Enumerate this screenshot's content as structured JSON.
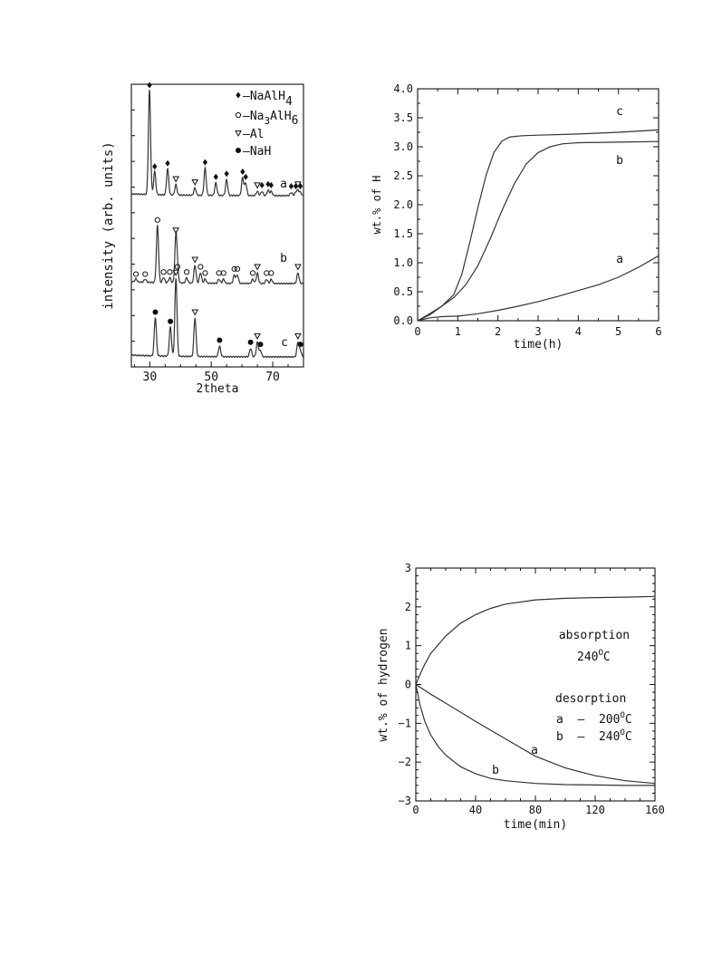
{
  "chart_data": [
    {
      "type": "line",
      "panel": "xrd",
      "xlabel": "2theta",
      "ylabel": "intensity (arb. units)",
      "xlim": [
        24,
        80
      ],
      "x_ticks": [
        "30",
        "50",
        "70"
      ],
      "x_tick_values": [
        30,
        50,
        70
      ],
      "legend": [
        {
          "marker": "diamond",
          "label": "NaAlH4",
          "text_prefix": "–NaAlH",
          "sub": "4"
        },
        {
          "marker": "circle-open",
          "label": "Na3AlH6",
          "text_prefix": "–Na",
          "sub1": "3",
          "mid": "AlH",
          "sub": "6"
        },
        {
          "marker": "triangle-open",
          "label": "Al",
          "text_prefix": "–Al"
        },
        {
          "marker": "circle-filled",
          "label": "NaH",
          "text_prefix": "–NaH"
        }
      ],
      "series": [
        {
          "name": "a",
          "peaks": [
            {
              "x": 29.9,
              "h": 1.0,
              "phase": "NaAlH4"
            },
            {
              "x": 31.6,
              "h": 0.22,
              "phase": "NaAlH4"
            },
            {
              "x": 35.8,
              "h": 0.25,
              "phase": "NaAlH4"
            },
            {
              "x": 38.5,
              "h": 0.1,
              "phase": "Al"
            },
            {
              "x": 44.7,
              "h": 0.07,
              "phase": "Al"
            },
            {
              "x": 48.0,
              "h": 0.26,
              "phase": "NaAlH4"
            },
            {
              "x": 51.5,
              "h": 0.12,
              "phase": "NaAlH4"
            },
            {
              "x": 55.0,
              "h": 0.15,
              "phase": "NaAlH4"
            },
            {
              "x": 60.2,
              "h": 0.17,
              "phase": "NaAlH4"
            },
            {
              "x": 61.2,
              "h": 0.12,
              "phase": "NaAlH4"
            },
            {
              "x": 65.0,
              "h": 0.04,
              "phase": "Al"
            },
            {
              "x": 66.5,
              "h": 0.04,
              "phase": "NaAlH4"
            },
            {
              "x": 68.5,
              "h": 0.05,
              "phase": "NaAlH4"
            },
            {
              "x": 69.5,
              "h": 0.04,
              "phase": "NaAlH4"
            },
            {
              "x": 76.0,
              "h": 0.03,
              "phase": "NaAlH4"
            },
            {
              "x": 77.5,
              "h": 0.03,
              "phase": "NaAlH4"
            },
            {
              "x": 78.2,
              "h": 0.05,
              "phase": "Al"
            },
            {
              "x": 79.0,
              "h": 0.03,
              "phase": "NaAlH4"
            }
          ]
        },
        {
          "name": "b",
          "peaks": [
            {
              "x": 25.5,
              "h": 0.03,
              "phase": "Na3AlH6"
            },
            {
              "x": 28.5,
              "h": 0.03,
              "phase": "Na3AlH6"
            },
            {
              "x": 32.5,
              "h": 0.55,
              "phase": "Na3AlH6"
            },
            {
              "x": 34.5,
              "h": 0.05,
              "phase": "Na3AlH6"
            },
            {
              "x": 36.5,
              "h": 0.05,
              "phase": "Na3AlH6"
            },
            {
              "x": 38.5,
              "h": 0.45,
              "phase": "Al"
            },
            {
              "x": 39.0,
              "h": 0.1,
              "phase": "Na3AlH6"
            },
            {
              "x": 42.0,
              "h": 0.05,
              "phase": "Na3AlH6"
            },
            {
              "x": 44.7,
              "h": 0.17,
              "phase": "Al"
            },
            {
              "x": 46.5,
              "h": 0.1,
              "phase": "Na3AlH6"
            },
            {
              "x": 48.0,
              "h": 0.04,
              "phase": "Na3AlH6"
            },
            {
              "x": 52.5,
              "h": 0.04,
              "phase": "Na3AlH6"
            },
            {
              "x": 54.0,
              "h": 0.04,
              "phase": "Na3AlH6"
            },
            {
              "x": 57.5,
              "h": 0.08,
              "phase": "Na3AlH6"
            },
            {
              "x": 58.5,
              "h": 0.08,
              "phase": "Na3AlH6"
            },
            {
              "x": 63.5,
              "h": 0.04,
              "phase": "Na3AlH6"
            },
            {
              "x": 65.0,
              "h": 0.1,
              "phase": "Al"
            },
            {
              "x": 68.0,
              "h": 0.04,
              "phase": "Na3AlH6"
            },
            {
              "x": 69.5,
              "h": 0.04,
              "phase": "Na3AlH6"
            },
            {
              "x": 78.2,
              "h": 0.1,
              "phase": "Al"
            }
          ]
        },
        {
          "name": "c",
          "peaks": [
            {
              "x": 31.8,
              "h": 0.37,
              "phase": "NaH"
            },
            {
              "x": 36.7,
              "h": 0.28,
              "phase": "NaH"
            },
            {
              "x": 38.5,
              "h": 0.75,
              "phase": "Al"
            },
            {
              "x": 44.7,
              "h": 0.37,
              "phase": "Al"
            },
            {
              "x": 52.7,
              "h": 0.1,
              "phase": "NaH"
            },
            {
              "x": 62.8,
              "h": 0.08,
              "phase": "NaH"
            },
            {
              "x": 65.0,
              "h": 0.14,
              "phase": "Al"
            },
            {
              "x": 66.0,
              "h": 0.06,
              "phase": "NaH"
            },
            {
              "x": 78.2,
              "h": 0.14,
              "phase": "Al"
            },
            {
              "x": 79.0,
              "h": 0.06,
              "phase": "NaH"
            }
          ]
        }
      ]
    },
    {
      "type": "line",
      "panel": "desorption-kinetics",
      "xlabel": "time(h)",
      "ylabel": "wt.% of H",
      "xlim": [
        0,
        6
      ],
      "ylim": [
        0,
        4.0
      ],
      "x_ticks": [
        "0",
        "1",
        "2",
        "3",
        "4",
        "5",
        "6"
      ],
      "y_ticks": [
        "0.0",
        "0.5",
        "1.0",
        "1.5",
        "2.0",
        "2.5",
        "3.0",
        "3.5",
        "4.0"
      ],
      "series": [
        {
          "name": "a",
          "x": [
            0,
            0.3,
            0.6,
            1.0,
            1.5,
            2.0,
            2.5,
            3.0,
            3.5,
            4.0,
            4.5,
            5.0,
            5.5,
            6.0
          ],
          "y": [
            0.0,
            0.05,
            0.07,
            0.08,
            0.12,
            0.18,
            0.25,
            0.33,
            0.42,
            0.52,
            0.62,
            0.75,
            0.92,
            1.12
          ]
        },
        {
          "name": "b",
          "x": [
            0,
            0.3,
            0.6,
            0.9,
            1.2,
            1.5,
            1.8,
            2.1,
            2.4,
            2.7,
            3.0,
            3.3,
            3.6,
            4.0,
            5.0,
            6.0
          ],
          "y": [
            0.0,
            0.12,
            0.25,
            0.4,
            0.62,
            0.95,
            1.4,
            1.9,
            2.35,
            2.7,
            2.9,
            3.0,
            3.05,
            3.07,
            3.08,
            3.09
          ]
        },
        {
          "name": "c",
          "x": [
            0,
            0.3,
            0.6,
            0.9,
            1.1,
            1.3,
            1.5,
            1.7,
            1.9,
            2.1,
            2.3,
            2.6,
            3.0,
            4.0,
            5.0,
            6.0
          ],
          "y": [
            0.0,
            0.1,
            0.25,
            0.45,
            0.8,
            1.35,
            1.95,
            2.5,
            2.9,
            3.1,
            3.17,
            3.19,
            3.2,
            3.22,
            3.25,
            3.29
          ]
        }
      ]
    },
    {
      "type": "line",
      "panel": "absorption-desorption",
      "xlabel": "time(min)",
      "ylabel": "wt.% of hydrogen",
      "xlim": [
        0,
        160
      ],
      "ylim": [
        -3,
        3
      ],
      "x_ticks": [
        "0",
        "40",
        "80",
        "120",
        "160"
      ],
      "y_ticks": [
        "3",
        "2",
        "1",
        "0",
        "−1",
        "−2",
        "−3"
      ],
      "annotations": {
        "absorption": "absorption",
        "absorption_temp": "240",
        "desorption": "desorption",
        "a_line": "a  –  200",
        "b_line": "b  –  240",
        "deg_unit": "O",
        "deg_C": "C"
      },
      "series": [
        {
          "name": "absorption",
          "x": [
            0,
            5,
            10,
            20,
            30,
            40,
            50,
            60,
            80,
            100,
            120,
            140,
            160
          ],
          "y": [
            0,
            0.45,
            0.8,
            1.25,
            1.58,
            1.8,
            1.96,
            2.07,
            2.18,
            2.22,
            2.24,
            2.25,
            2.27
          ]
        },
        {
          "name": "a",
          "x": [
            0,
            10,
            20,
            40,
            60,
            80,
            100,
            120,
            140,
            160
          ],
          "y": [
            0,
            -0.25,
            -0.48,
            -0.95,
            -1.4,
            -1.85,
            -2.15,
            -2.35,
            -2.48,
            -2.55
          ]
        },
        {
          "name": "b",
          "x": [
            0,
            3,
            6,
            10,
            15,
            20,
            30,
            40,
            50,
            60,
            80,
            100,
            120,
            140,
            160
          ],
          "y": [
            0,
            -0.55,
            -0.95,
            -1.3,
            -1.6,
            -1.82,
            -2.12,
            -2.3,
            -2.42,
            -2.48,
            -2.55,
            -2.58,
            -2.59,
            -2.6,
            -2.6
          ]
        }
      ]
    }
  ]
}
